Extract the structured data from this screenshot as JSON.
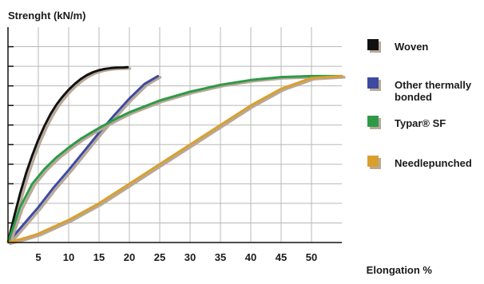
{
  "chart_data": {
    "type": "line",
    "title": "",
    "ylabel": "Strenght (kN/m)",
    "xlabel": "Elongation %",
    "xlim": [
      0,
      55
    ],
    "ylim": [
      0,
      11
    ],
    "x_ticks": [
      5,
      10,
      15,
      20,
      25,
      30,
      35,
      40,
      45,
      50
    ],
    "y_tick_count": 11,
    "grid": true,
    "legend_position": "right",
    "shadow_color": "#b8a898",
    "grid_color": "#b8b8b8",
    "series": [
      {
        "name": "Woven",
        "legend_lines": [
          "Woven"
        ],
        "color": "#111111",
        "x": [
          0,
          1,
          2,
          3,
          4,
          5,
          6,
          7,
          8,
          9,
          10,
          11,
          12,
          13,
          14,
          15,
          16,
          17,
          18,
          19,
          19.7
        ],
        "y": [
          0,
          1.3,
          2.5,
          3.55,
          4.45,
          5.25,
          5.95,
          6.55,
          7.05,
          7.45,
          7.8,
          8.1,
          8.35,
          8.55,
          8.7,
          8.8,
          8.87,
          8.91,
          8.93,
          8.94,
          8.95
        ]
      },
      {
        "name": "Other thermally bonded",
        "legend_lines": [
          "Other thermally",
          "bonded"
        ],
        "color": "#3c4aa0",
        "x": [
          0,
          2.5,
          5,
          7.5,
          10,
          12.5,
          15,
          17.5,
          20,
          22.5,
          24.7
        ],
        "y": [
          0,
          0.9,
          1.8,
          2.8,
          3.7,
          4.65,
          5.6,
          6.5,
          7.35,
          8.1,
          8.5
        ]
      },
      {
        "name": "Typar® SF",
        "legend_lines": [
          "Typar® SF"
        ],
        "color": "#2e9a48",
        "x": [
          0,
          2,
          4,
          6,
          8,
          10,
          12,
          15,
          18,
          20,
          25,
          30,
          35,
          40,
          45,
          50,
          55
        ],
        "y": [
          0,
          1.8,
          3.0,
          3.75,
          4.35,
          4.85,
          5.3,
          5.85,
          6.35,
          6.65,
          7.25,
          7.7,
          8.05,
          8.3,
          8.45,
          8.5,
          8.5
        ]
      },
      {
        "name": "Needlepunched",
        "legend_lines": [
          "Needlepunched"
        ],
        "color": "#d9a02e",
        "x": [
          0,
          3,
          5,
          10,
          15,
          20,
          25,
          30,
          35,
          40,
          45,
          50,
          55
        ],
        "y": [
          0,
          0.25,
          0.45,
          1.15,
          2.0,
          3.0,
          4.0,
          5.0,
          6.0,
          7.0,
          7.85,
          8.4,
          8.5
        ]
      }
    ]
  }
}
